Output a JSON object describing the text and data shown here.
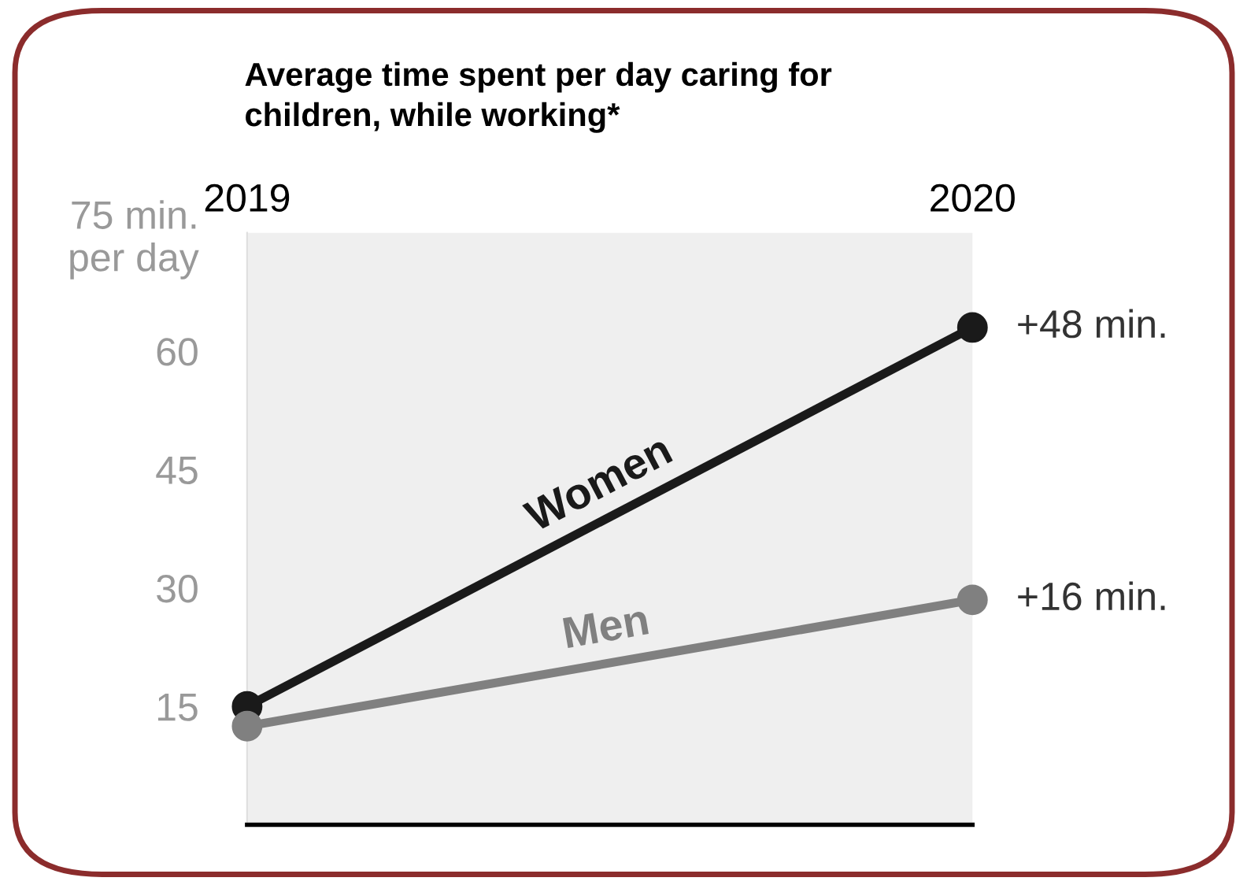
{
  "chart_data": {
    "type": "line",
    "title": "Average time spent per day caring for\nchildren, while working*",
    "categories": [
      "2019",
      "2020"
    ],
    "series": [
      {
        "name": "Women",
        "color": "#1a1a1a",
        "values": [
          15,
          63
        ]
      },
      {
        "name": "Men",
        "color": "#808080",
        "values": [
          12.5,
          28.5
        ]
      }
    ],
    "ylim": [
      0,
      75
    ],
    "yticks": [
      15,
      30,
      45,
      60,
      {
        "value": 75,
        "label": "75 min.\nper day"
      }
    ],
    "annotations": [
      "+48 min.",
      "+16 min."
    ],
    "bands": [
      {
        "axis": "y",
        "from": 0,
        "to": 75,
        "color": "#efefef"
      }
    ],
    "marker": "circle",
    "line_style": "solid",
    "grid": false,
    "legend": false
  }
}
